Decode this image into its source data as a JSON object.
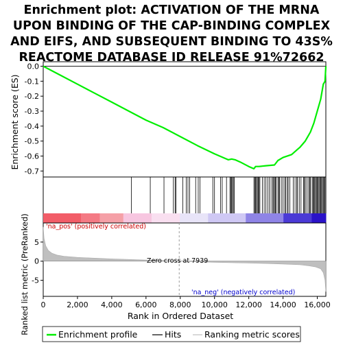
{
  "chart_data": {
    "type": "line",
    "title_lines": [
      "Enrichment plot: ACTIVATION OF THE MRNA",
      "UPON BINDING OF THE CAP-BINDING COMPLEX",
      "AND EIFS, AND SUBSEQUENT BINDING TO 43S%",
      "REACTOME DATABASE ID RELEASE 91%72662"
    ],
    "es_panel": {
      "ylabel": "Enrichment score (ES)",
      "ylim": [
        -0.74,
        0.03
      ],
      "yticks": [
        "0.0",
        "-0.1",
        "-0.2",
        "-0.3",
        "-0.4",
        "-0.5",
        "-0.6",
        "-0.7"
      ],
      "ytick_values": [
        0.0,
        -0.1,
        -0.2,
        -0.3,
        -0.4,
        -0.5,
        -0.6,
        -0.7
      ],
      "series": [
        {
          "name": "Enrichment profile",
          "color": "#00ee00",
          "x": [
            0,
            1000,
            2000,
            3000,
            4000,
            5000,
            6000,
            7000,
            8000,
            9000,
            10000,
            10800,
            11000,
            11200,
            11500,
            12000,
            12300,
            12400,
            12600,
            13000,
            13500,
            13700,
            14000,
            14500,
            14800,
            15000,
            15300,
            15600,
            15800,
            16000,
            16200,
            16350,
            16450,
            16500
          ],
          "y": [
            0.0,
            -0.06,
            -0.12,
            -0.18,
            -0.24,
            -0.3,
            -0.36,
            -0.41,
            -0.47,
            -0.53,
            -0.585,
            -0.625,
            -0.62,
            -0.625,
            -0.64,
            -0.67,
            -0.685,
            -0.67,
            -0.67,
            -0.665,
            -0.66,
            -0.63,
            -0.61,
            -0.59,
            -0.56,
            -0.54,
            -0.5,
            -0.44,
            -0.38,
            -0.3,
            -0.22,
            -0.12,
            -0.1,
            0.0
          ]
        }
      ]
    },
    "hits": {
      "name": "Hits",
      "positions": [
        5150,
        6250,
        7050,
        7600,
        7700,
        7750,
        8150,
        8350,
        8450,
        8550,
        8900,
        9050,
        9150,
        9900,
        10000,
        10350,
        10450,
        10700,
        10900,
        10950,
        11000,
        11050,
        11100,
        11150,
        12300,
        12350,
        12400,
        12450,
        12500,
        12550,
        12600,
        12650,
        12800,
        12900,
        13000,
        13100,
        13200,
        13300,
        13400,
        13450,
        13500,
        13550,
        13600,
        13700,
        13750,
        13800,
        13900,
        14000,
        14100,
        14150,
        14250,
        14300,
        14400,
        14600,
        14700,
        14800,
        14850,
        14950,
        15050,
        15200,
        15250,
        15300,
        15400,
        15500,
        15550,
        15600,
        15700,
        15750,
        15800,
        15850,
        15900,
        15950,
        16000,
        16050,
        16100,
        16150,
        16200,
        16250,
        16300,
        16350,
        16400,
        16450
      ]
    },
    "rank_metric": {
      "name": "Ranking metric scores",
      "ylabel": "Ranked list metric (PreRanked)",
      "ylim": [
        -9.2,
        10.0
      ],
      "yticks": [
        "-5",
        "0",
        "5"
      ],
      "ytick_values": [
        -5,
        0,
        5
      ],
      "x": [
        0,
        50,
        150,
        300,
        500,
        800,
        1200,
        2000,
        3000,
        4000,
        5000,
        6000,
        7000,
        7939,
        9000,
        10000,
        11000,
        12000,
        13000,
        14000,
        15000,
        15500,
        15900,
        16200,
        16350,
        16450,
        16500
      ],
      "y": [
        9.0,
        6.0,
        4.0,
        2.8,
        2.1,
        1.6,
        1.3,
        1.0,
        0.8,
        0.6,
        0.45,
        0.3,
        0.15,
        0.0,
        -0.15,
        -0.3,
        -0.4,
        -0.5,
        -0.6,
        -0.75,
        -0.95,
        -1.2,
        -1.5,
        -2.0,
        -3.0,
        -5.0,
        -8.0
      ]
    },
    "xlabel": "Rank in Ordered Dataset",
    "xlim": [
      0,
      16500
    ],
    "xticks": [
      "0",
      "2,000",
      "4,000",
      "6,000",
      "8,000",
      "10,000",
      "12,000",
      "14,000",
      "16,000"
    ],
    "xtick_values": [
      0,
      2000,
      4000,
      6000,
      8000,
      10000,
      12000,
      14000,
      16000
    ],
    "zero_cross": 7939,
    "annotations": {
      "pos_label": "'na_pos' (positively correlated)",
      "neg_label": "'na_neg' (negatively correlated)",
      "zero_cross_label": "Zero cross at 7939"
    },
    "colors": {
      "profile": "#00ee00",
      "pos_annotation": "#cc0000",
      "neg_annotation": "#0000cc",
      "metric_fill": "#bfbfbf"
    },
    "legend": {
      "placement": "bottom",
      "entries": [
        "Enrichment profile",
        "Hits",
        "Ranking metric scores"
      ]
    }
  }
}
